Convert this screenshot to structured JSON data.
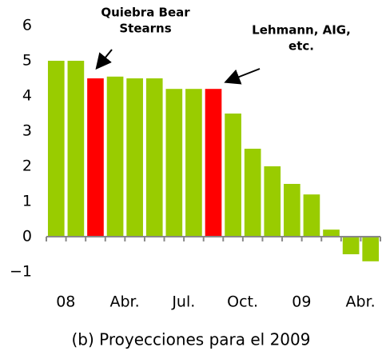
{
  "chart_data": {
    "type": "bar",
    "title": "(b) Proyecciones para el 2009",
    "categories": [
      "08",
      null,
      null,
      "Abr.",
      null,
      null,
      "Jul.",
      null,
      null,
      "Oct.",
      null,
      null,
      "09",
      null,
      null,
      "Abr.",
      null
    ],
    "values": [
      5,
      5,
      4.5,
      4.55,
      4.5,
      4.5,
      4.2,
      4.2,
      4.2,
      3.5,
      2.5,
      2.0,
      1.5,
      1.2,
      0.2,
      -0.5,
      -0.7
    ],
    "colors": [
      "#99cc00",
      "#99cc00",
      "#ff0000",
      "#99cc00",
      "#99cc00",
      "#99cc00",
      "#99cc00",
      "#99cc00",
      "#ff0000",
      "#99cc00",
      "#99cc00",
      "#99cc00",
      "#99cc00",
      "#99cc00",
      "#99cc00",
      "#99cc00",
      "#99cc00"
    ],
    "ylim": [
      -1,
      6
    ],
    "yticks": [
      {
        "value": -1,
        "label": "−1"
      },
      0,
      1,
      2,
      3,
      4,
      5,
      6
    ],
    "annotations": [
      {
        "lines": [
          "Quiebra Bear",
          "Stearns"
        ]
      },
      {
        "lines": [
          "Lehmann, AIG,",
          "etc."
        ]
      }
    ]
  }
}
